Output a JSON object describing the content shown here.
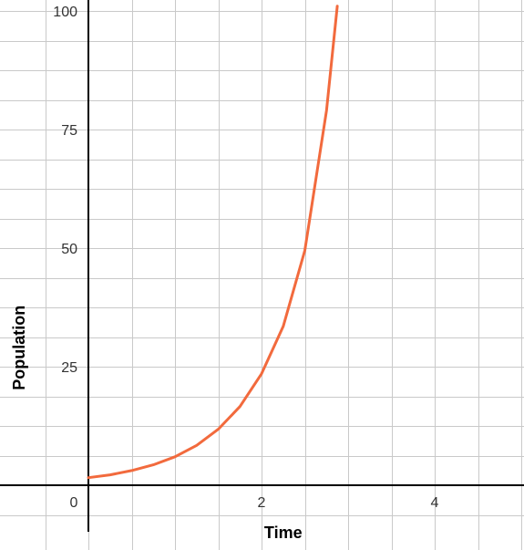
{
  "chart_data": {
    "type": "line",
    "title": "",
    "xlabel": "Time",
    "ylabel": "Population",
    "xlim": [
      -0.9,
      5
    ],
    "ylim": [
      -10,
      102
    ],
    "x_ticks": [
      {
        "value": 0,
        "label": "0"
      },
      {
        "value": 2,
        "label": "2"
      },
      {
        "value": 4,
        "label": "4"
      }
    ],
    "y_ticks": [
      {
        "value": 25,
        "label": "25"
      },
      {
        "value": 50,
        "label": "50"
      },
      {
        "value": 75,
        "label": "75"
      },
      {
        "value": 100,
        "label": "100"
      }
    ],
    "grid": true,
    "grid_step_x": 0.5,
    "grid_step_y": 6.25,
    "series": [
      {
        "color": "#f26a3d",
        "x": [
          0,
          0.25,
          0.5,
          0.75,
          1,
          1.25,
          1.5,
          1.75,
          2,
          2.25,
          2.5,
          2.75,
          2.875
        ],
        "y": [
          1.6,
          2.2,
          3.1,
          4.3,
          6.0,
          8.4,
          11.8,
          16.6,
          23.5,
          33.5,
          49.5,
          79,
          101
        ]
      }
    ]
  }
}
